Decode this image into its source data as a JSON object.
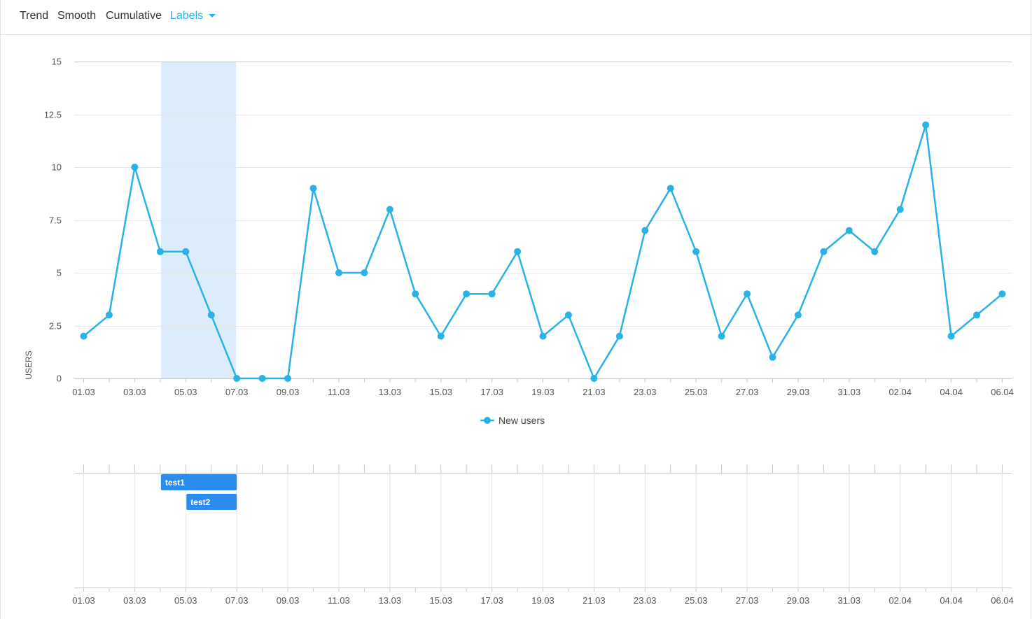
{
  "toolbar": {
    "trend": "Trend",
    "smooth": "Smooth",
    "cumulative": "Cumulative",
    "labels": "Labels"
  },
  "colors": {
    "series": "#29b2e6",
    "highlight": "#dcecfb",
    "label_bar": "#2b8cf0",
    "grid": "#e6e6e6"
  },
  "chart_data": {
    "type": "line",
    "ylabel": "USERS",
    "ylim": [
      0,
      15
    ],
    "yticks": [
      "0",
      "2.5",
      "5",
      "7.5",
      "10",
      "12.5",
      "15"
    ],
    "grid": true,
    "legend_position": "bottom-center",
    "x": [
      "01.03",
      "02.03",
      "03.03",
      "04.03",
      "05.03",
      "06.03",
      "07.03",
      "08.03",
      "09.03",
      "10.03",
      "11.03",
      "12.03",
      "13.03",
      "14.03",
      "15.03",
      "16.03",
      "17.03",
      "18.03",
      "19.03",
      "20.03",
      "21.03",
      "22.03",
      "23.03",
      "24.03",
      "25.03",
      "26.03",
      "27.03",
      "28.03",
      "29.03",
      "30.03",
      "31.03",
      "01.04",
      "02.04",
      "03.04",
      "04.04",
      "05.04",
      "06.04"
    ],
    "xtick_labels": [
      "01.03",
      "03.03",
      "05.03",
      "07.03",
      "09.03",
      "11.03",
      "13.03",
      "15.03",
      "17.03",
      "19.03",
      "21.03",
      "23.03",
      "25.03",
      "27.03",
      "29.03",
      "31.03",
      "02.04",
      "04.04",
      "06.04"
    ],
    "series": [
      {
        "name": "New users",
        "values": [
          2,
          3,
          10,
          6,
          6,
          3,
          0,
          0,
          0,
          9,
          5,
          5,
          8,
          4,
          2,
          4,
          4,
          6,
          2,
          3,
          0,
          2,
          7,
          9,
          6,
          2,
          4,
          1,
          3,
          6,
          7,
          6,
          8,
          12,
          2,
          3,
          4
        ]
      }
    ],
    "highlight_range": [
      "04.03",
      "07.03"
    ],
    "labels": [
      {
        "text": "test1",
        "start": "04.03",
        "end": "07.03"
      },
      {
        "text": "test2",
        "start": "05.03",
        "end": "07.03"
      }
    ]
  }
}
